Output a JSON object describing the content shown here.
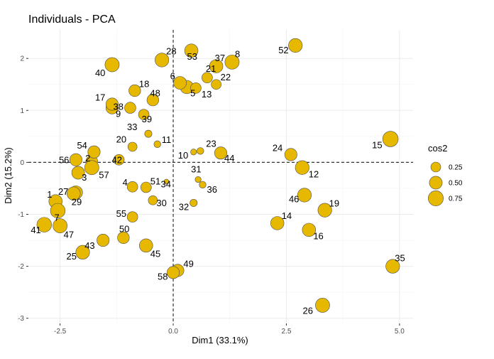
{
  "chart_data": {
    "type": "scatter",
    "title": "Individuals - PCA",
    "xlabel": "Dim1 (33.1%)",
    "ylabel": "Dim2 (15.2%)",
    "xlim": [
      -3.2,
      5.3
    ],
    "ylim": [
      -3.1,
      2.55
    ],
    "xticks": [
      -2.5,
      0.0,
      2.5,
      5.0
    ],
    "xtick_labels": [
      "-2.5",
      "0.0",
      "2.5",
      "5.0"
    ],
    "yticks": [
      -3,
      -2,
      -1,
      0,
      1,
      2
    ],
    "ytick_labels": [
      "-3",
      "-2",
      "-1",
      "0",
      "1",
      "2"
    ],
    "grid": true,
    "reference_lines": {
      "x": 0,
      "y": 0,
      "style": "dashed"
    },
    "point_color": "#E7B800",
    "point_stroke": "#4d4d4d",
    "legend": {
      "title": "cos2",
      "position": "right",
      "entries": [
        {
          "label": "0.25",
          "value": 0.25
        },
        {
          "label": "0.50",
          "value": 0.5
        },
        {
          "label": "0.75",
          "value": 0.75
        }
      ]
    },
    "points": [
      {
        "id": "1",
        "x": -2.6,
        "y": -0.75,
        "cos2": 0.55
      },
      {
        "id": "2",
        "x": -1.8,
        "y": 0.02,
        "cos2": 0.4
      },
      {
        "id": "3",
        "x": -2.1,
        "y": -0.2,
        "cos2": 0.5
      },
      {
        "id": "4",
        "x": -0.9,
        "y": -0.47,
        "cos2": 0.3
      },
      {
        "id": "5",
        "x": 0.3,
        "y": 1.45,
        "cos2": 0.55
      },
      {
        "id": "6",
        "x": 0.15,
        "y": 1.53,
        "cos2": 0.5
      },
      {
        "id": "7",
        "x": -2.55,
        "y": -0.93,
        "cos2": 0.7
      },
      {
        "id": "8",
        "x": 1.3,
        "y": 1.93,
        "cos2": 0.65
      },
      {
        "id": "9",
        "x": -1.35,
        "y": 1.05,
        "cos2": 0.45
      },
      {
        "id": "10",
        "x": 0.45,
        "y": 0.2,
        "cos2": 0.05
      },
      {
        "id": "11",
        "x": -0.35,
        "y": 0.35,
        "cos2": 0.08
      },
      {
        "id": "12",
        "x": 2.85,
        "y": -0.1,
        "cos2": 0.6
      },
      {
        "id": "13",
        "x": 0.5,
        "y": 1.43,
        "cos2": 0.3
      },
      {
        "id": "14",
        "x": 2.3,
        "y": -1.17,
        "cos2": 0.55
      },
      {
        "id": "15",
        "x": 4.8,
        "y": 0.45,
        "cos2": 0.8
      },
      {
        "id": "16",
        "x": 3.0,
        "y": -1.3,
        "cos2": 0.55
      },
      {
        "id": "17",
        "x": -1.35,
        "y": 1.12,
        "cos2": 0.45
      },
      {
        "id": "18",
        "x": -0.85,
        "y": 1.38,
        "cos2": 0.4
      },
      {
        "id": "19",
        "x": 3.35,
        "y": -0.92,
        "cos2": 0.6
      },
      {
        "id": "20",
        "x": -0.9,
        "y": 0.3,
        "cos2": 0.2
      },
      {
        "id": "21",
        "x": 0.75,
        "y": 1.63,
        "cos2": 0.3
      },
      {
        "id": "22",
        "x": 0.95,
        "y": 1.5,
        "cos2": 0.25
      },
      {
        "id": "23",
        "x": 0.6,
        "y": 0.22,
        "cos2": 0.08
      },
      {
        "id": "24",
        "x": 2.6,
        "y": 0.15,
        "cos2": 0.45
      },
      {
        "id": "25",
        "x": -2.0,
        "y": -1.73,
        "cos2": 0.6
      },
      {
        "id": "26",
        "x": 3.3,
        "y": -2.75,
        "cos2": 0.65
      },
      {
        "id": "27",
        "x": -2.15,
        "y": -0.58,
        "cos2": 0.55
      },
      {
        "id": "28",
        "x": -0.25,
        "y": 1.97,
        "cos2": 0.6
      },
      {
        "id": "29",
        "x": -2.2,
        "y": -0.6,
        "cos2": 0.55
      },
      {
        "id": "30",
        "x": -0.45,
        "y": -0.73,
        "cos2": 0.2
      },
      {
        "id": "31",
        "x": 0.55,
        "y": -0.33,
        "cos2": 0.05
      },
      {
        "id": "32",
        "x": 0.45,
        "y": -0.78,
        "cos2": 0.1
      },
      {
        "id": "33",
        "x": -0.55,
        "y": 0.55,
        "cos2": 0.1
      },
      {
        "id": "34",
        "x": -0.15,
        "y": -0.37,
        "cos2": 0.02
      },
      {
        "id": "35",
        "x": 4.85,
        "y": -2.0,
        "cos2": 0.6
      },
      {
        "id": "36",
        "x": 0.65,
        "y": -0.43,
        "cos2": 0.08
      },
      {
        "id": "37",
        "x": 0.95,
        "y": 1.85,
        "cos2": 0.55
      },
      {
        "id": "38",
        "x": -0.95,
        "y": 1.05,
        "cos2": 0.35
      },
      {
        "id": "39",
        "x": -0.65,
        "y": 0.92,
        "cos2": 0.3
      },
      {
        "id": "40",
        "x": -1.35,
        "y": 1.88,
        "cos2": 0.65
      },
      {
        "id": "41",
        "x": -2.85,
        "y": -1.2,
        "cos2": 0.7
      },
      {
        "id": "42",
        "x": -1.2,
        "y": 0.05,
        "cos2": 0.3
      },
      {
        "id": "43",
        "x": -1.55,
        "y": -1.5,
        "cos2": 0.45
      },
      {
        "id": "44",
        "x": 1.05,
        "y": 0.18,
        "cos2": 0.45
      },
      {
        "id": "45",
        "x": -0.6,
        "y": -1.6,
        "cos2": 0.55
      },
      {
        "id": "46",
        "x": 2.9,
        "y": -0.63,
        "cos2": 0.6
      },
      {
        "id": "47",
        "x": -2.5,
        "y": -1.22,
        "cos2": 0.65
      },
      {
        "id": "48",
        "x": -0.45,
        "y": 1.2,
        "cos2": 0.4
      },
      {
        "id": "49",
        "x": 0.1,
        "y": -2.08,
        "cos2": 0.45
      },
      {
        "id": "50",
        "x": -1.1,
        "y": -1.45,
        "cos2": 0.4
      },
      {
        "id": "51",
        "x": -0.6,
        "y": -0.48,
        "cos2": 0.3
      },
      {
        "id": "52",
        "x": 2.7,
        "y": 2.25,
        "cos2": 0.6
      },
      {
        "id": "53",
        "x": 0.4,
        "y": 2.15,
        "cos2": 0.55
      },
      {
        "id": "54",
        "x": -1.75,
        "y": 0.2,
        "cos2": 0.45
      },
      {
        "id": "55",
        "x": -0.9,
        "y": -1.05,
        "cos2": 0.3
      },
      {
        "id": "56",
        "x": -2.15,
        "y": 0.05,
        "cos2": 0.45
      },
      {
        "id": "57",
        "x": -1.8,
        "y": -0.1,
        "cos2": 0.65
      },
      {
        "id": "58",
        "x": 0.0,
        "y": -2.12,
        "cos2": 0.45
      }
    ],
    "label_offsets": {
      "1": [
        -12,
        -5
      ],
      "2": [
        -9,
        0
      ],
      "3": [
        5,
        11
      ],
      "4": [
        -14,
        -2
      ],
      "5": [
        5,
        13
      ],
      "6": [
        -14,
        -5
      ],
      "7": [
        -5,
        14
      ],
      "8": [
        4,
        -7
      ],
      "9": [
        5,
        13
      ],
      "10": [
        -22,
        9
      ],
      "11": [
        6,
        -2
      ],
      "12": [
        9,
        14
      ],
      "13": [
        8,
        13
      ],
      "14": [
        6,
        -6
      ],
      "15": [
        -26,
        13
      ],
      "16": [
        6,
        13
      ],
      "17": [
        -24,
        -5
      ],
      "18": [
        6,
        -5
      ],
      "19": [
        6,
        -5
      ],
      "20": [
        -23,
        -6
      ],
      "21": [
        -2,
        -8
      ],
      "22": [
        6,
        -6
      ],
      "23": [
        8,
        -6
      ],
      "24": [
        -26,
        -5
      ],
      "25": [
        -23,
        10
      ],
      "26": [
        -28,
        12
      ],
      "27": [
        -25,
        3
      ],
      "28": [
        6,
        -8
      ],
      "29": [
        -3,
        16
      ],
      "30": [
        5,
        8
      ],
      "31": [
        -10,
        -10
      ],
      "32": [
        -21,
        10
      ],
      "33": [
        -30,
        -5
      ],
      "34": [
        -8,
        8
      ],
      "35": [
        3,
        -7
      ],
      "36": [
        6,
        11
      ],
      "37": [
        -2,
        -7
      ],
      "38": [
        -24,
        3
      ],
      "39": [
        -3,
        11
      ],
      "40": [
        -24,
        16
      ],
      "41": [
        -19,
        12
      ],
      "42": [
        -10,
        5
      ],
      "43": [
        -26,
        12
      ],
      "44": [
        5,
        12
      ],
      "45": [
        6,
        16
      ],
      "46": [
        -22,
        10
      ],
      "47": [
        5,
        17
      ],
      "48": [
        -4,
        -5
      ],
      "49": [
        8,
        -5
      ],
      "50": [
        -6,
        -8
      ],
      "51": [
        6,
        -4
      ],
      "52": [
        -24,
        11
      ],
      "53": [
        -6,
        13
      ],
      "54": [
        -24,
        -5
      ],
      "55": [
        -23,
        0
      ],
      "56": [
        -24,
        5
      ],
      "57": [
        10,
        15
      ],
      "58": [
        -22,
        10
      ]
    }
  }
}
